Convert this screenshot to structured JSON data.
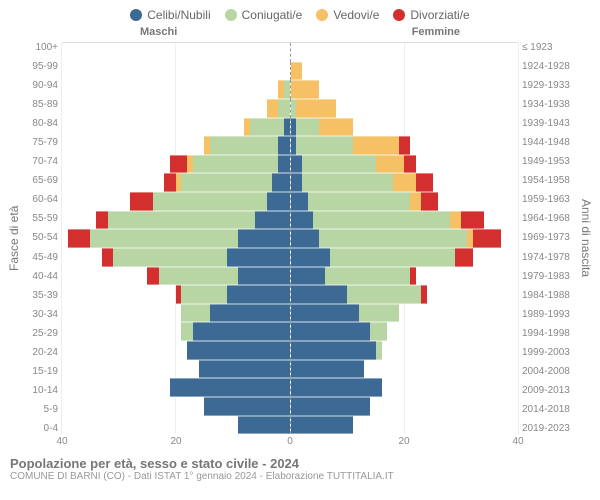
{
  "legend": [
    {
      "label": "Celibi/Nubili",
      "color": "#3d6995"
    },
    {
      "label": "Coniugati/e",
      "color": "#b7d6a4"
    },
    {
      "label": "Vedovi/e",
      "color": "#f6c065"
    },
    {
      "label": "Divorziati/e",
      "color": "#d32f2f"
    }
  ],
  "header": {
    "left": "Maschi",
    "right": "Femmine"
  },
  "yaxis_left_title": "Fasce di età",
  "yaxis_right_title": "Anni di nascita",
  "xmax": 40,
  "xticks": [
    40,
    20,
    0,
    20,
    40
  ],
  "title": "Popolazione per età, sesso e stato civile - 2024",
  "subtitle": "COMUNE DI BARNI (CO) - Dati ISTAT 1° gennaio 2024 - Elaborazione TUTTITALIA.IT",
  "colors": {
    "celibi": "#3d6995",
    "coniugati": "#b7d6a4",
    "vedovi": "#f6c065",
    "divorziati": "#d32f2f",
    "grid": "#eeeeee",
    "axis_text": "#888888"
  },
  "chart_style": {
    "type": "population-pyramid",
    "xlim": [
      0,
      40
    ],
    "xtick_step": 20,
    "background_color": "#ffffff",
    "title_fontsize": 13,
    "label_fontsize": 11,
    "tick_fontsize": 10,
    "center_line": "dashed"
  },
  "rows": [
    {
      "age": "100+",
      "birth": "≤ 1923",
      "m": {
        "c": 0,
        "g": 0,
        "v": 0,
        "d": 0
      },
      "f": {
        "c": 0,
        "g": 0,
        "v": 0,
        "d": 0
      }
    },
    {
      "age": "95-99",
      "birth": "1924-1928",
      "m": {
        "c": 0,
        "g": 0,
        "v": 0,
        "d": 0
      },
      "f": {
        "c": 0,
        "g": 0,
        "v": 2,
        "d": 0
      }
    },
    {
      "age": "90-94",
      "birth": "1929-1933",
      "m": {
        "c": 0,
        "g": 1,
        "v": 1,
        "d": 0
      },
      "f": {
        "c": 0,
        "g": 0,
        "v": 5,
        "d": 0
      }
    },
    {
      "age": "85-89",
      "birth": "1934-1938",
      "m": {
        "c": 0,
        "g": 2,
        "v": 2,
        "d": 0
      },
      "f": {
        "c": 0,
        "g": 1,
        "v": 7,
        "d": 0
      }
    },
    {
      "age": "80-84",
      "birth": "1939-1943",
      "m": {
        "c": 1,
        "g": 6,
        "v": 1,
        "d": 0
      },
      "f": {
        "c": 1,
        "g": 4,
        "v": 6,
        "d": 0
      }
    },
    {
      "age": "75-79",
      "birth": "1944-1948",
      "m": {
        "c": 2,
        "g": 12,
        "v": 1,
        "d": 0
      },
      "f": {
        "c": 1,
        "g": 10,
        "v": 8,
        "d": 2
      }
    },
    {
      "age": "70-74",
      "birth": "1949-1953",
      "m": {
        "c": 2,
        "g": 15,
        "v": 1,
        "d": 3
      },
      "f": {
        "c": 2,
        "g": 13,
        "v": 5,
        "d": 2
      }
    },
    {
      "age": "65-69",
      "birth": "1954-1958",
      "m": {
        "c": 3,
        "g": 16,
        "v": 1,
        "d": 2
      },
      "f": {
        "c": 2,
        "g": 16,
        "v": 4,
        "d": 3
      }
    },
    {
      "age": "60-64",
      "birth": "1959-1963",
      "m": {
        "c": 4,
        "g": 20,
        "v": 0,
        "d": 4
      },
      "f": {
        "c": 3,
        "g": 18,
        "v": 2,
        "d": 3
      }
    },
    {
      "age": "55-59",
      "birth": "1964-1968",
      "m": {
        "c": 6,
        "g": 26,
        "v": 0,
        "d": 2
      },
      "f": {
        "c": 4,
        "g": 24,
        "v": 2,
        "d": 4
      }
    },
    {
      "age": "50-54",
      "birth": "1969-1973",
      "m": {
        "c": 9,
        "g": 26,
        "v": 0,
        "d": 4
      },
      "f": {
        "c": 5,
        "g": 26,
        "v": 1,
        "d": 5
      }
    },
    {
      "age": "45-49",
      "birth": "1974-1978",
      "m": {
        "c": 11,
        "g": 20,
        "v": 0,
        "d": 2
      },
      "f": {
        "c": 7,
        "g": 22,
        "v": 0,
        "d": 3
      }
    },
    {
      "age": "40-44",
      "birth": "1979-1983",
      "m": {
        "c": 9,
        "g": 14,
        "v": 0,
        "d": 2
      },
      "f": {
        "c": 6,
        "g": 15,
        "v": 0,
        "d": 1
      }
    },
    {
      "age": "35-39",
      "birth": "1984-1988",
      "m": {
        "c": 11,
        "g": 8,
        "v": 0,
        "d": 1
      },
      "f": {
        "c": 10,
        "g": 13,
        "v": 0,
        "d": 1
      }
    },
    {
      "age": "30-34",
      "birth": "1989-1993",
      "m": {
        "c": 14,
        "g": 5,
        "v": 0,
        "d": 0
      },
      "f": {
        "c": 12,
        "g": 7,
        "v": 0,
        "d": 0
      }
    },
    {
      "age": "25-29",
      "birth": "1994-1998",
      "m": {
        "c": 17,
        "g": 2,
        "v": 0,
        "d": 0
      },
      "f": {
        "c": 14,
        "g": 3,
        "v": 0,
        "d": 0
      }
    },
    {
      "age": "20-24",
      "birth": "1999-2003",
      "m": {
        "c": 18,
        "g": 0,
        "v": 0,
        "d": 0
      },
      "f": {
        "c": 15,
        "g": 1,
        "v": 0,
        "d": 0
      }
    },
    {
      "age": "15-19",
      "birth": "2004-2008",
      "m": {
        "c": 16,
        "g": 0,
        "v": 0,
        "d": 0
      },
      "f": {
        "c": 13,
        "g": 0,
        "v": 0,
        "d": 0
      }
    },
    {
      "age": "10-14",
      "birth": "2009-2013",
      "m": {
        "c": 21,
        "g": 0,
        "v": 0,
        "d": 0
      },
      "f": {
        "c": 16,
        "g": 0,
        "v": 0,
        "d": 0
      }
    },
    {
      "age": "5-9",
      "birth": "2014-2018",
      "m": {
        "c": 15,
        "g": 0,
        "v": 0,
        "d": 0
      },
      "f": {
        "c": 14,
        "g": 0,
        "v": 0,
        "d": 0
      }
    },
    {
      "age": "0-4",
      "birth": "2019-2023",
      "m": {
        "c": 9,
        "g": 0,
        "v": 0,
        "d": 0
      },
      "f": {
        "c": 11,
        "g": 0,
        "v": 0,
        "d": 0
      }
    }
  ]
}
